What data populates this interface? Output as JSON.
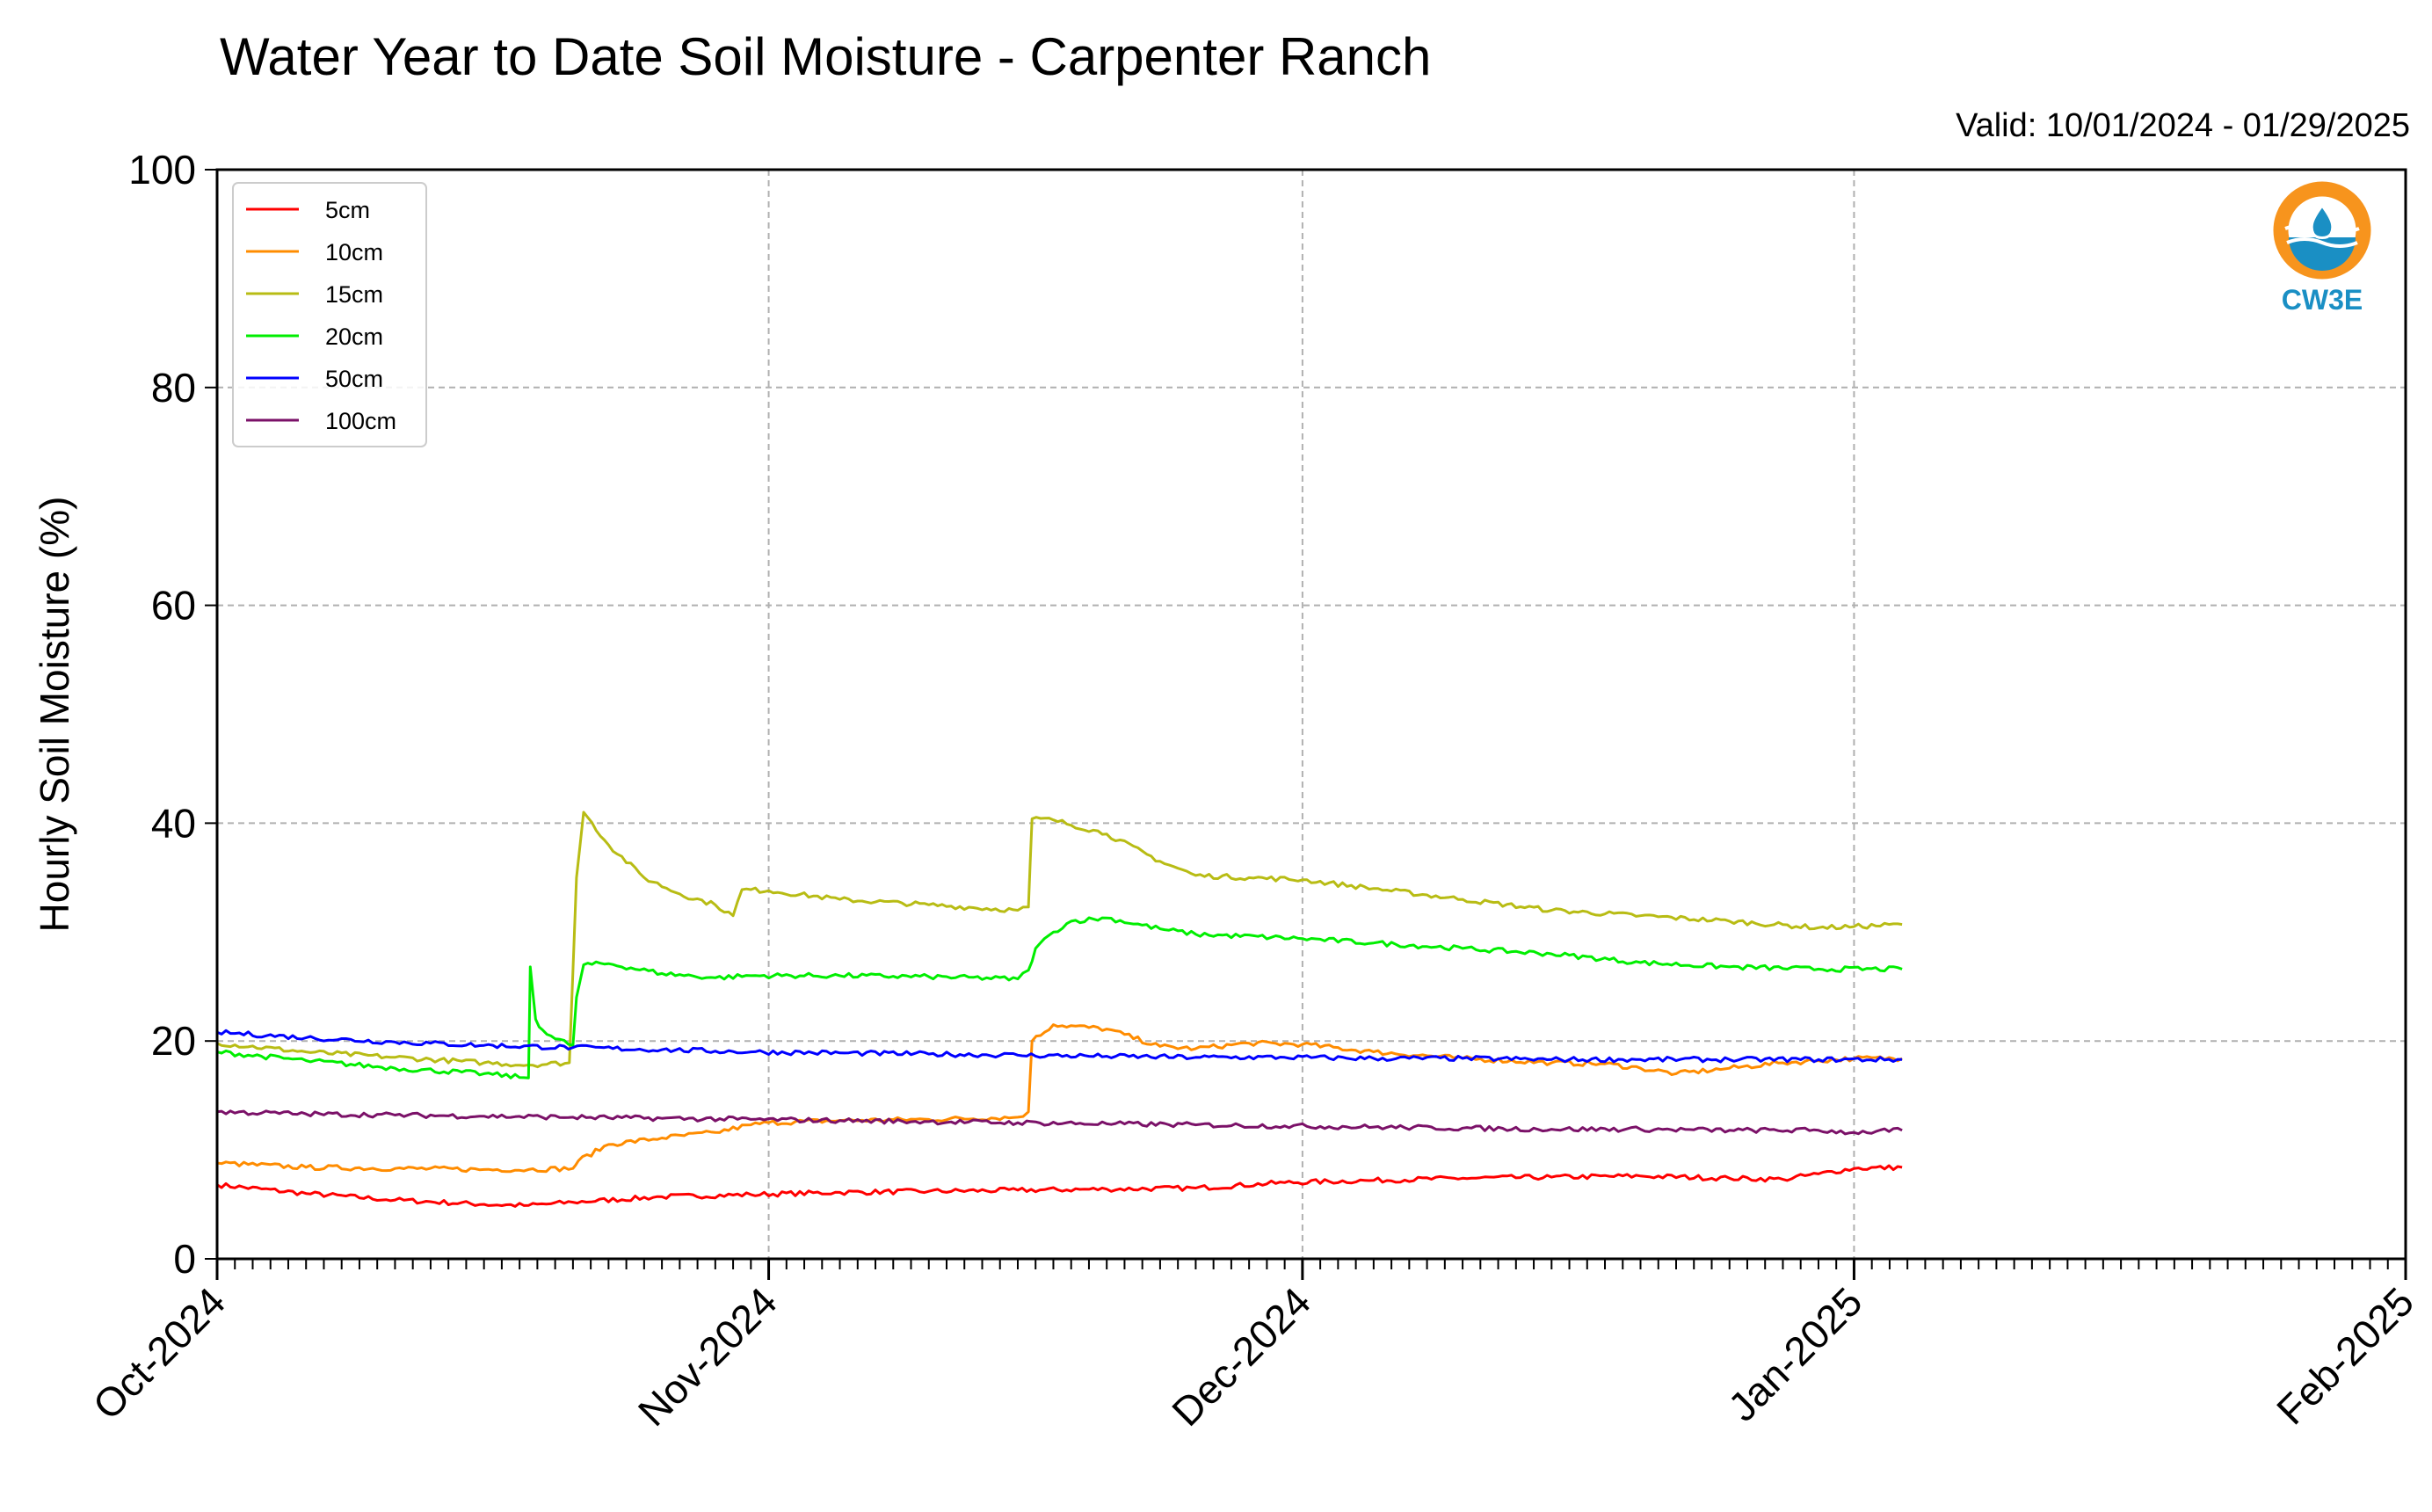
{
  "chart_data": {
    "type": "line",
    "title": "Water Year to Date Soil Moisture - Carpenter Ranch",
    "subtitle": "Valid: 10/01/2024 - 01/29/2025",
    "ylabel": "Hourly Soil Moisture (%)",
    "xlabel": "",
    "ylim": [
      0,
      100
    ],
    "xlim_days": [
      0,
      123
    ],
    "y_ticks": [
      "0",
      "20",
      "40",
      "60",
      "80",
      "100"
    ],
    "x_ticks": [
      {
        "label": "Oct-2024",
        "day": 0
      },
      {
        "label": "Nov-2024",
        "day": 31
      },
      {
        "label": "Dec-2024",
        "day": 61
      },
      {
        "label": "Jan-2025",
        "day": 92
      },
      {
        "label": "Feb-2025",
        "day": 123
      }
    ],
    "grid": true,
    "legend_position": "top-left",
    "series": [
      {
        "name": "5cm",
        "color": "#ff0000",
        "x": [
          0,
          5,
          10,
          15,
          17.5,
          20,
          25,
          30,
          35,
          40,
          45,
          50,
          55,
          60,
          65,
          70,
          75,
          80,
          85,
          88,
          90,
          92,
          94.7
        ],
        "y": [
          6.8,
          6.0,
          5.4,
          5.0,
          4.9,
          5.2,
          5.7,
          5.9,
          6.1,
          6.2,
          6.3,
          6.4,
          6.5,
          7.0,
          7.2,
          7.4,
          7.5,
          7.6,
          7.4,
          7.3,
          7.8,
          8.3,
          8.4
        ]
      },
      {
        "name": "10cm",
        "color": "#ff8c00",
        "x": [
          0,
          5,
          10,
          15,
          17.5,
          20,
          20.3,
          22,
          25,
          28,
          30,
          31,
          35,
          40,
          45,
          45.6,
          45.8,
          47,
          50,
          53,
          55,
          58,
          61,
          65,
          70,
          75,
          78,
          80,
          82,
          85,
          88,
          90,
          92,
          94.7
        ],
        "y": [
          8.8,
          8.4,
          8.3,
          8.2,
          8.2,
          8.3,
          9.0,
          10.5,
          11.1,
          11.6,
          12.3,
          12.5,
          12.7,
          12.8,
          13.0,
          13.5,
          20.0,
          21.5,
          21.1,
          19.5,
          19.3,
          19.8,
          19.7,
          19.0,
          18.4,
          18.0,
          17.9,
          17.5,
          17.0,
          17.5,
          18.0,
          18.2,
          18.4,
          18.4
        ]
      },
      {
        "name": "15cm",
        "color": "#b8bc14",
        "x": [
          0,
          5,
          10,
          15,
          17.5,
          19.8,
          20.2,
          20.6,
          22,
          24,
          26,
          28,
          29,
          29.5,
          31,
          35,
          40,
          45,
          45.6,
          45.8,
          47,
          50,
          53,
          55,
          58,
          61,
          65,
          70,
          75,
          80,
          85,
          90,
          92,
          94.7
        ],
        "y": [
          19.8,
          19.0,
          18.5,
          18.0,
          17.8,
          18.0,
          35.0,
          41.0,
          38.0,
          35.0,
          33.5,
          32.5,
          31.5,
          33.9,
          33.8,
          33.0,
          32.5,
          32.0,
          32.3,
          40.4,
          40.3,
          39.0,
          36.5,
          35.2,
          35.0,
          34.8,
          34.0,
          33.0,
          32.0,
          31.5,
          31.0,
          30.4,
          30.5,
          30.7
        ]
      },
      {
        "name": "20cm",
        "color": "#00ee00",
        "x": [
          0,
          5,
          10,
          15,
          17.5,
          17.6,
          17.9,
          18.3,
          19,
          20,
          20.2,
          20.6,
          22,
          25,
          28,
          30,
          35,
          40,
          45,
          45.6,
          46,
          47,
          48,
          50,
          53,
          55,
          61,
          65,
          70,
          75,
          80,
          85,
          90,
          94.7
        ],
        "y": [
          19.0,
          18.2,
          17.5,
          17.0,
          16.6,
          26.8,
          22.0,
          21.0,
          20.2,
          19.6,
          24.0,
          27.0,
          27.1,
          26.2,
          25.8,
          26.0,
          26.0,
          25.9,
          25.7,
          26.5,
          28.5,
          30.0,
          31.0,
          31.3,
          30.3,
          29.8,
          29.4,
          29.0,
          28.5,
          28.0,
          27.2,
          26.8,
          26.6,
          26.6
        ]
      },
      {
        "name": "50cm",
        "color": "#0000ff",
        "x": [
          0,
          5,
          10,
          15,
          20,
          25,
          30,
          35,
          40,
          45,
          50,
          55,
          60,
          65,
          70,
          75,
          80,
          85,
          90,
          94.7
        ],
        "y": [
          20.8,
          20.3,
          19.9,
          19.6,
          19.4,
          19.2,
          19.0,
          18.9,
          18.8,
          18.7,
          18.6,
          18.5,
          18.5,
          18.4,
          18.4,
          18.3,
          18.3,
          18.3,
          18.3,
          18.3
        ]
      },
      {
        "name": "100cm",
        "color": "#7b1168",
        "x": [
          0,
          5,
          10,
          15,
          20,
          25,
          30,
          35,
          40,
          45,
          50,
          55,
          60,
          65,
          70,
          75,
          80,
          85,
          90,
          92,
          94.7
        ],
        "y": [
          13.5,
          13.3,
          13.2,
          13.1,
          13.0,
          12.9,
          12.8,
          12.7,
          12.6,
          12.5,
          12.4,
          12.3,
          12.2,
          12.1,
          12.0,
          11.9,
          11.9,
          11.8,
          11.8,
          11.6,
          11.8
        ]
      }
    ]
  },
  "logo": {
    "text": "CW3E",
    "ring_color": "#f7941d",
    "wave_color": "#1a8fc4"
  }
}
